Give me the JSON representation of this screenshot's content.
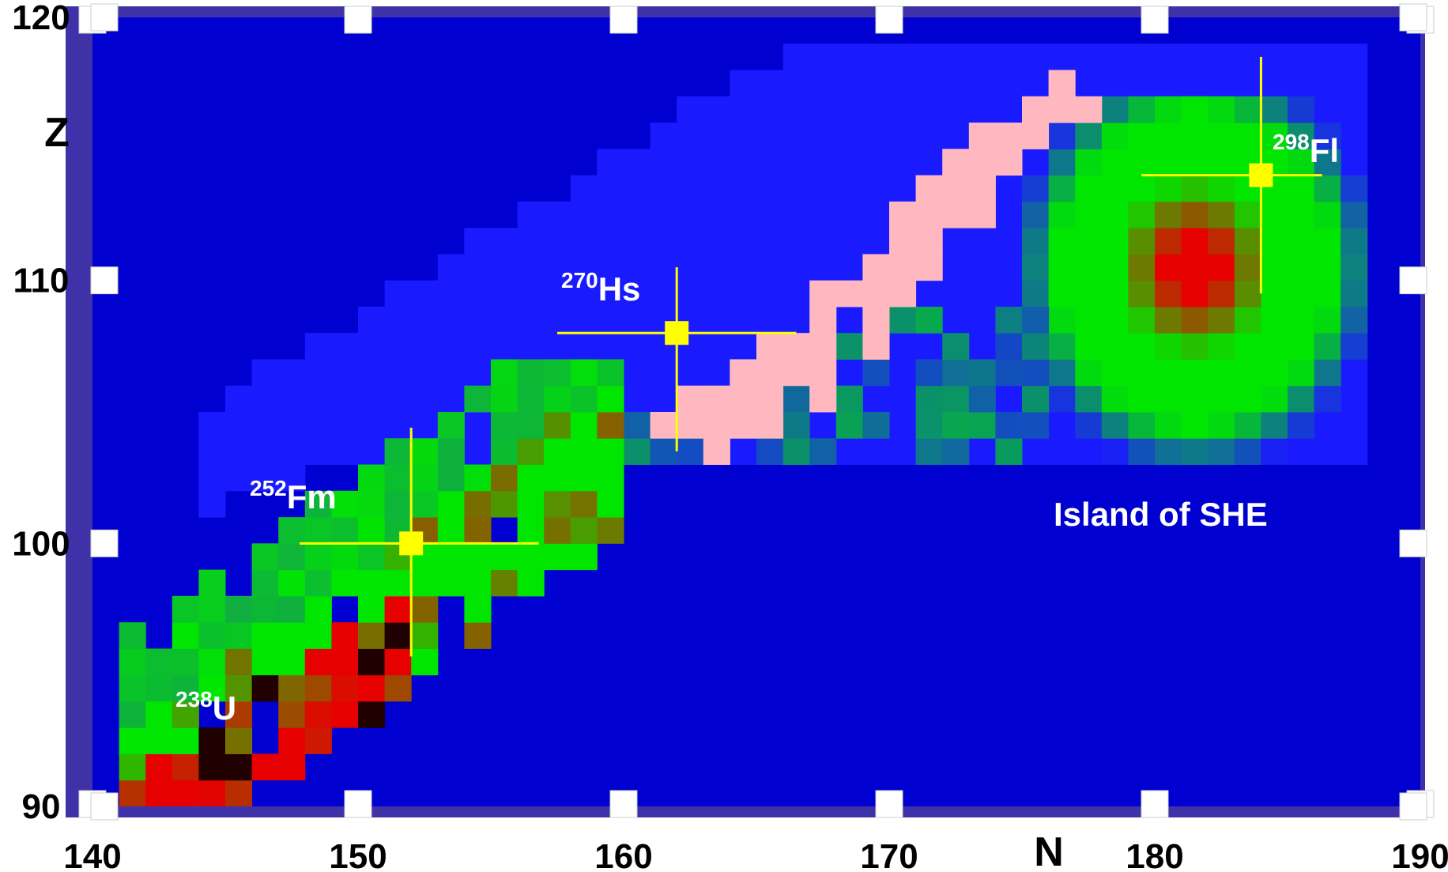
{
  "chart_data": {
    "type": "heatmap",
    "title": "",
    "xlabel": "N",
    "ylabel": "Z",
    "xlim": [
      140,
      190
    ],
    "ylim": [
      90,
      120
    ],
    "xticks": [
      "140",
      "150",
      "160",
      "170",
      "180",
      "190"
    ],
    "yticks": [
      "90",
      "100",
      "110",
      "120"
    ],
    "grid": false,
    "colors": {
      "background_blue": "#0000d0",
      "halo_blue": "#1a1aff",
      "frame": "#3f32a8",
      "green": "#00e600",
      "red": "#e60000",
      "pink_path": "#ffb8c0",
      "marker": "#ffff00"
    },
    "annotations": [
      {
        "id": "u238",
        "sup": "238",
        "text": "U",
        "N": 146,
        "Z": 93
      },
      {
        "id": "fm252",
        "sup": "252",
        "text": "Fm",
        "N": 152,
        "Z": 100
      },
      {
        "id": "hs270",
        "sup": "270",
        "text": "Hs",
        "N": 162,
        "Z": 108
      },
      {
        "id": "fl298",
        "sup": "298",
        "text": "Fl",
        "N": 184,
        "Z": 114
      },
      {
        "id": "island",
        "sup": "",
        "text": "Island of SHE",
        "N": 181,
        "Z": 101
      }
    ],
    "markers": [
      {
        "name": "252Fm",
        "N": 152,
        "Z": 100,
        "xerr": [
          147.8,
          156.8
        ],
        "yerr": [
          95.7,
          104.4
        ]
      },
      {
        "name": "270Hs",
        "N": 162,
        "Z": 108,
        "xerr": [
          157.5,
          166.5
        ],
        "yerr": [
          103.5,
          110.5
        ]
      },
      {
        "name": "298Fl",
        "N": 184,
        "Z": 114,
        "xerr": [
          179.5,
          186.3
        ],
        "yerr": [
          109.5,
          118.5
        ]
      }
    ],
    "regions": [
      {
        "name": "known-nuclei-region",
        "description_from_pixels": "green/red chequered band of cells",
        "N_range": [
          141,
          159
        ],
        "Z_range": [
          90,
          106
        ]
      },
      {
        "name": "blue-halo",
        "N_range": [
          141,
          188
        ],
        "Z_range": [
          100,
          119
        ]
      },
      {
        "name": "island-of-stability",
        "center": [
          181,
          110
        ],
        "N_range": [
          176,
          187
        ],
        "Z_range": [
          102,
          116
        ]
      },
      {
        "name": "synthesized-chain",
        "color": "pink_path",
        "N_range": [
          161,
          177
        ],
        "Z_range": [
          103,
          118
        ]
      }
    ]
  }
}
